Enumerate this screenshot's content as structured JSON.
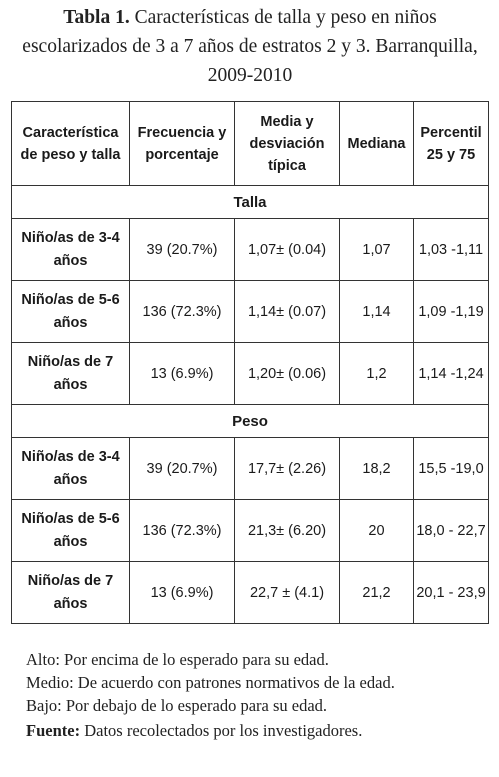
{
  "caption": {
    "label": "Tabla 1.",
    "text": " Características de talla y peso en niños escolarizados de 3 a 7 años de estratos 2 y 3. Barranquilla, 2009-2010"
  },
  "table": {
    "headers": [
      "Característica de peso y talla",
      "Frecuencia y porcentaje",
      "Media y desviación típica",
      "Mediana",
      "Percentil 25 y 75"
    ],
    "sections": [
      {
        "title": "Talla",
        "rows": [
          {
            "label": "Niño/as de 3-4 años",
            "frecuencia": "39 (20.7%)",
            "media": "1,07± (0.04)",
            "mediana": "1,07",
            "percentil": "1,03 -1,11"
          },
          {
            "label": "Niño/as de 5-6 años",
            "frecuencia": "136 (72.3%)",
            "media": "1,14± (0.07)",
            "mediana": "1,14",
            "percentil": "1,09 -1,19"
          },
          {
            "label": "Niño/as de 7 años",
            "frecuencia": "13 (6.9%)",
            "media": "1,20± (0.06)",
            "mediana": "1,2",
            "percentil": "1,14 -1,24"
          }
        ]
      },
      {
        "title": "Peso",
        "rows": [
          {
            "label": "Niño/as de 3-4 años",
            "frecuencia": "39 (20.7%)",
            "media": "17,7± (2.26)",
            "mediana": "18,2",
            "percentil": "15,5 -19,0"
          },
          {
            "label": "Niño/as de 5-6 años",
            "frecuencia": "136 (72.3%)",
            "media": "21,3± (6.20)",
            "mediana": "20",
            "percentil": "18,0 - 22,7"
          },
          {
            "label": "Niño/as de 7 años",
            "frecuencia": "13 (6.9%)",
            "media": "22,7 ± (4.1)",
            "mediana": "21,2",
            "percentil": "20,1 - 23,9"
          }
        ]
      }
    ]
  },
  "notes": {
    "alto": "Alto: Por encima de lo esperado para su edad.",
    "medio": "Medio: De acuerdo con patrones normativos de la edad.",
    "bajo": "Bajo: Por debajo de lo esperado para su edad.",
    "fuente_label": "Fuente:",
    "fuente_text": " Datos recolectados por los investigadores."
  }
}
